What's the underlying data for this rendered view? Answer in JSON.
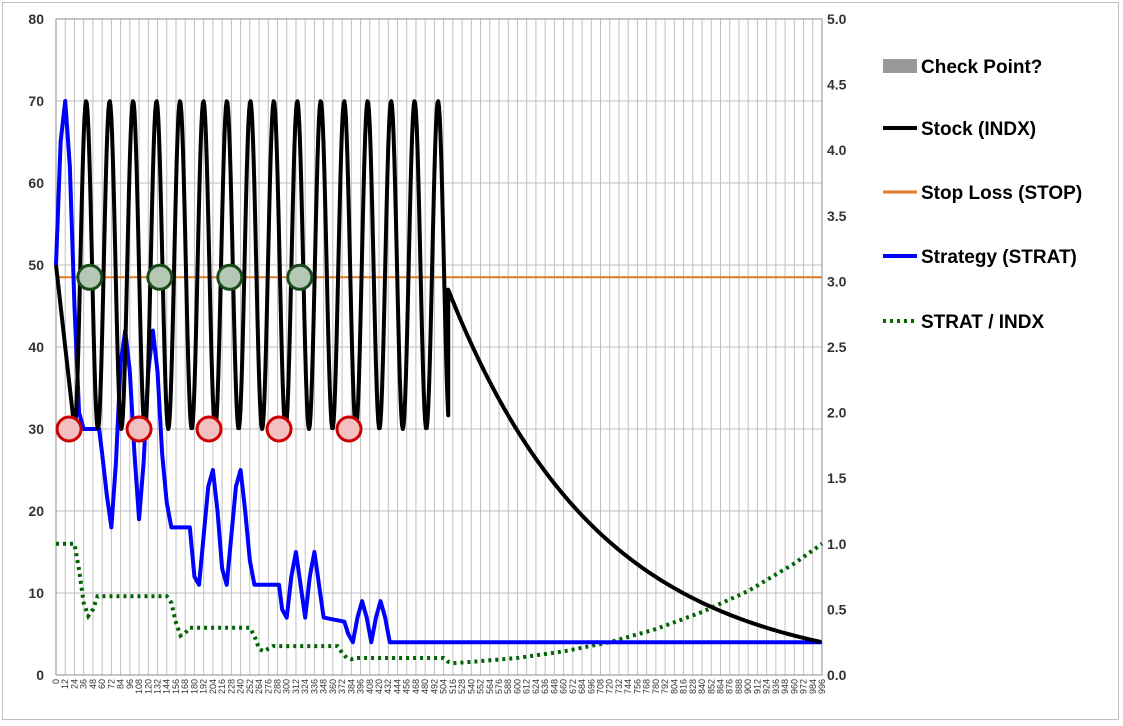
{
  "chart_data": {
    "type": "line",
    "title": "",
    "xlabel": "",
    "ylabel": "",
    "y2label": "",
    "xlim": [
      0,
      996
    ],
    "ylim": [
      0,
      80
    ],
    "y2lim": [
      0,
      5
    ],
    "left_ticks": [
      "0",
      "10",
      "20",
      "30",
      "40",
      "50",
      "60",
      "70",
      "80"
    ],
    "right_ticks": [
      "0.0",
      "0.5",
      "1.0",
      "1.5",
      "2.0",
      "2.5",
      "3.0",
      "3.5",
      "4.0",
      "4.5",
      "5.0"
    ],
    "x_tick_step": 12,
    "grid": true,
    "legend_position": "right",
    "colors": {
      "stock": "#000000",
      "stop": "#e07b26",
      "strat": "#0000ff",
      "ratio": "#006400",
      "checkpoint_swatch": "#999999",
      "marker_red": "#cc0000",
      "marker_red_fill": "#f2c0c0",
      "marker_green": "#1a4a1a",
      "marker_green_fill": "#b5c7b5",
      "grid": "#bfbfbf"
    },
    "legend": {
      "checkpoint": "Check Point?",
      "stock": "Stock (INDX)",
      "stop": "Stop Loss (STOP)",
      "strat": "Strategy (STRAT)",
      "ratio": "STRAT / INDX"
    },
    "series": [
      {
        "name": "Stock (INDX)",
        "axis": "left",
        "description_of_shape": "oscillates between 30 and 70 with ~30-step period until x≈510, then decays from ~47 to ~4",
        "oscillation": {
          "mid": 50,
          "amplitude": 20,
          "start_x": 24,
          "period": 30.5,
          "end_x": 510
        },
        "decay": {
          "start_x": 510,
          "start_y": 47,
          "end_x": 996,
          "end_y": 4
        }
      },
      {
        "name": "Stop Loss (STOP)",
        "axis": "left",
        "points": [
          [
            0,
            48.5
          ],
          [
            996,
            48.5
          ]
        ]
      },
      {
        "name": "Strategy (STRAT)",
        "axis": "left",
        "points": [
          [
            0,
            50
          ],
          [
            6,
            65
          ],
          [
            12,
            70
          ],
          [
            18,
            62
          ],
          [
            24,
            45
          ],
          [
            30,
            32
          ],
          [
            36,
            30
          ],
          [
            56,
            30
          ],
          [
            60,
            27
          ],
          [
            66,
            22
          ],
          [
            72,
            18
          ],
          [
            78,
            26
          ],
          [
            84,
            38
          ],
          [
            90,
            42
          ],
          [
            96,
            37
          ],
          [
            102,
            27
          ],
          [
            108,
            19
          ],
          [
            114,
            26
          ],
          [
            120,
            37
          ],
          [
            126,
            42
          ],
          [
            132,
            37
          ],
          [
            138,
            27
          ],
          [
            144,
            21
          ],
          [
            150,
            18
          ],
          [
            174,
            18
          ],
          [
            180,
            12
          ],
          [
            186,
            11
          ],
          [
            192,
            17
          ],
          [
            198,
            23
          ],
          [
            204,
            25
          ],
          [
            210,
            20
          ],
          [
            216,
            13
          ],
          [
            222,
            11
          ],
          [
            228,
            17
          ],
          [
            234,
            23
          ],
          [
            240,
            25
          ],
          [
            246,
            20
          ],
          [
            252,
            14
          ],
          [
            258,
            11
          ],
          [
            290,
            11
          ],
          [
            294,
            8
          ],
          [
            300,
            7
          ],
          [
            306,
            12
          ],
          [
            312,
            15
          ],
          [
            318,
            11
          ],
          [
            324,
            7
          ],
          [
            330,
            12
          ],
          [
            336,
            15
          ],
          [
            342,
            11
          ],
          [
            348,
            7
          ],
          [
            375,
            6.5
          ],
          [
            380,
            5
          ],
          [
            386,
            4
          ],
          [
            392,
            7
          ],
          [
            398,
            9
          ],
          [
            404,
            7
          ],
          [
            410,
            4
          ],
          [
            416,
            7
          ],
          [
            422,
            9
          ],
          [
            428,
            7
          ],
          [
            434,
            4
          ],
          [
            996,
            4
          ]
        ]
      },
      {
        "name": "STRAT / INDX",
        "axis": "right",
        "points": [
          [
            0,
            1.0
          ],
          [
            24,
            1.0
          ],
          [
            30,
            0.8
          ],
          [
            36,
            0.55
          ],
          [
            42,
            0.45
          ],
          [
            48,
            0.5
          ],
          [
            54,
            0.6
          ],
          [
            144,
            0.6
          ],
          [
            150,
            0.55
          ],
          [
            156,
            0.4
          ],
          [
            162,
            0.3
          ],
          [
            168,
            0.32
          ],
          [
            174,
            0.36
          ],
          [
            252,
            0.36
          ],
          [
            258,
            0.3
          ],
          [
            264,
            0.2
          ],
          [
            270,
            0.18
          ],
          [
            276,
            0.2
          ],
          [
            282,
            0.22
          ],
          [
            366,
            0.22
          ],
          [
            372,
            0.17
          ],
          [
            378,
            0.13
          ],
          [
            384,
            0.12
          ],
          [
            390,
            0.13
          ],
          [
            504,
            0.13
          ],
          [
            510,
            0.1
          ],
          [
            516,
            0.09
          ],
          [
            540,
            0.1
          ],
          [
            600,
            0.13
          ],
          [
            660,
            0.18
          ],
          [
            720,
            0.25
          ],
          [
            780,
            0.35
          ],
          [
            840,
            0.48
          ],
          [
            900,
            0.64
          ],
          [
            960,
            0.85
          ],
          [
            996,
            1.0
          ]
        ]
      }
    ],
    "checkpoints_red": [
      [
        17,
        30
      ],
      [
        108,
        30
      ],
      [
        199,
        30
      ],
      [
        290,
        30
      ],
      [
        381,
        30
      ]
    ],
    "checkpoints_green": [
      [
        44,
        48.5
      ],
      [
        135,
        48.5
      ],
      [
        226,
        48.5
      ],
      [
        317,
        48.5
      ]
    ]
  }
}
